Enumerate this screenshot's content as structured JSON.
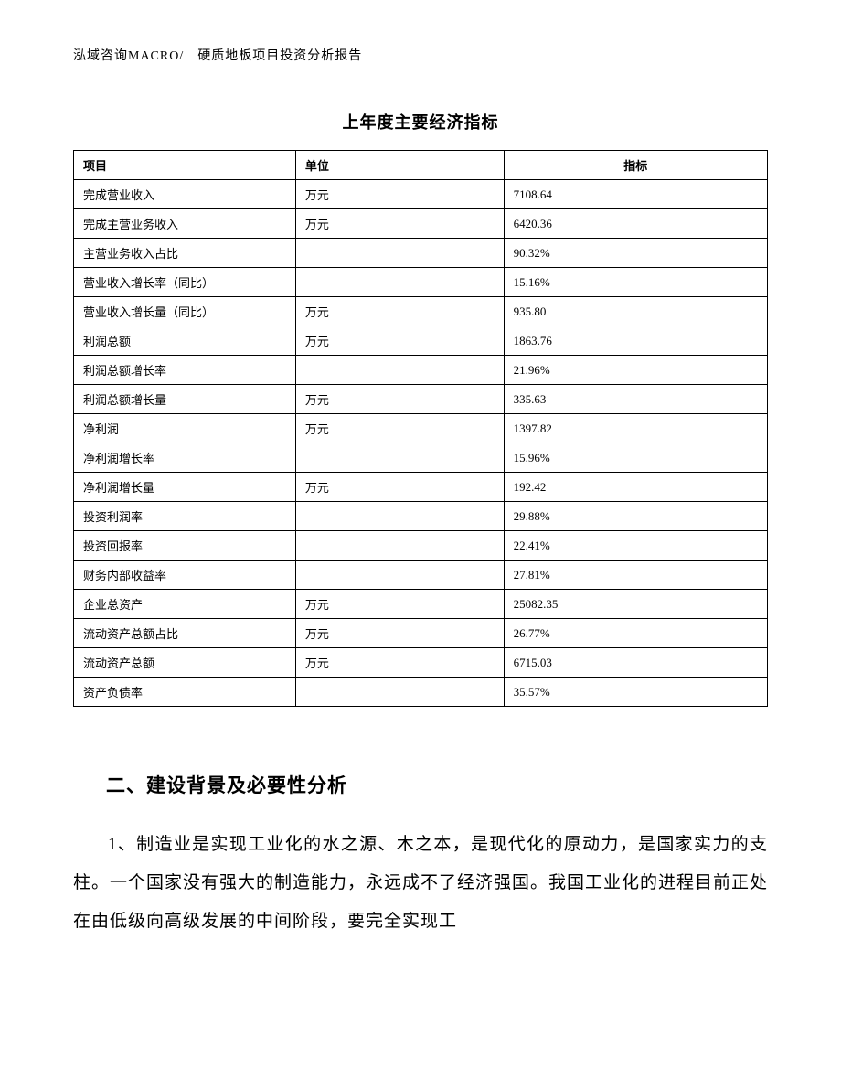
{
  "header": {
    "text": "泓域咨询MACRO/　硬质地板项目投资分析报告"
  },
  "table": {
    "type": "table",
    "title": "上年度主要经济指标",
    "columns": [
      "项目",
      "单位",
      "指标"
    ],
    "rows": [
      [
        "完成营业收入",
        "万元",
        "7108.64"
      ],
      [
        "完成主营业务收入",
        "万元",
        "6420.36"
      ],
      [
        "主营业务收入占比",
        "",
        "90.32%"
      ],
      [
        "营业收入增长率（同比）",
        "",
        "15.16%"
      ],
      [
        "营业收入增长量（同比）",
        "万元",
        "935.80"
      ],
      [
        "利润总额",
        "万元",
        "1863.76"
      ],
      [
        "利润总额增长率",
        "",
        "21.96%"
      ],
      [
        "利润总额增长量",
        "万元",
        "335.63"
      ],
      [
        "净利润",
        "万元",
        "1397.82"
      ],
      [
        "净利润增长率",
        "",
        "15.96%"
      ],
      [
        "净利润增长量",
        "万元",
        "192.42"
      ],
      [
        "投资利润率",
        "",
        "29.88%"
      ],
      [
        "投资回报率",
        "",
        "22.41%"
      ],
      [
        "财务内部收益率",
        "",
        "27.81%"
      ],
      [
        "企业总资产",
        "万元",
        "25082.35"
      ],
      [
        "流动资产总额占比",
        "万元",
        "26.77%"
      ],
      [
        "流动资产总额",
        "万元",
        "6715.03"
      ],
      [
        "资产负债率",
        "",
        "35.57%"
      ]
    ],
    "border_color": "#000000",
    "background_color": "#ffffff",
    "header_fontsize": 13,
    "cell_fontsize": 13
  },
  "section": {
    "title": "二、建设背景及必要性分析",
    "paragraph": "1、制造业是实现工业化的水之源、木之本，是现代化的原动力，是国家实力的支柱。一个国家没有强大的制造能力，永远成不了经济强国。我国工业化的进程目前正处在由低级向高级发展的中间阶段，要完全实现工"
  },
  "styles": {
    "page_background": "#ffffff",
    "text_color": "#000000",
    "title_fontsize": 18,
    "section_title_fontsize": 21,
    "body_fontsize": 19,
    "header_fontsize": 14
  }
}
